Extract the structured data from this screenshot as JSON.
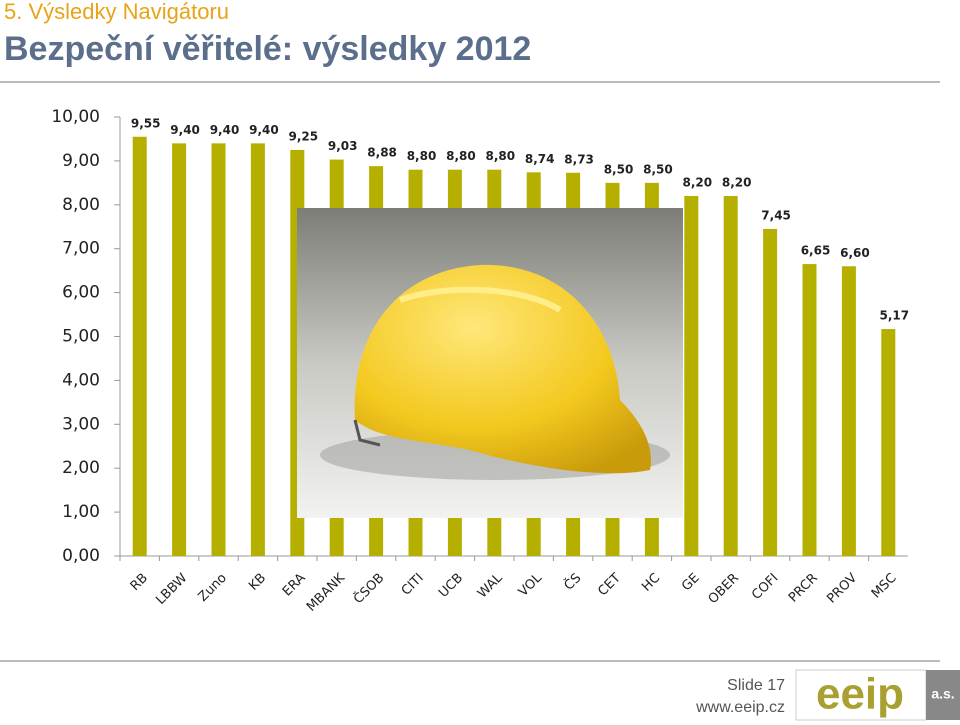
{
  "header": {
    "section": "5. Výsledky Navigátoru"
  },
  "chart_data": {
    "type": "bar",
    "title": "Bezpeční věřitelé: výsledky 2012",
    "categories": [
      "RB",
      "LBBW",
      "Zuno",
      "KB",
      "ERA",
      "MBANK",
      "ČSOB",
      "CITI",
      "UCB",
      "WAL",
      "VOL",
      "ČS",
      "CET",
      "HC",
      "GE",
      "OBER",
      "COFI",
      "PRCR",
      "PROV",
      "MSC"
    ],
    "values": [
      9.55,
      9.4,
      9.4,
      9.4,
      9.25,
      9.03,
      8.88,
      8.8,
      8.8,
      8.8,
      8.74,
      8.73,
      8.5,
      8.5,
      8.2,
      8.2,
      7.45,
      6.65,
      6.6,
      5.17
    ],
    "value_labels": [
      "9,55",
      "9,40",
      "9,40",
      "9,40",
      "9,25",
      "9,03",
      "8,88",
      "8,80",
      "8,80",
      "8,80",
      "8,74",
      "8,73",
      "8,50",
      "8,50",
      "8,20",
      "8,20",
      "7,45",
      "6,65",
      "6,60",
      "5,17"
    ],
    "color": "#b5b000",
    "ylim": [
      0,
      10
    ],
    "yticks": [
      {
        "value": 0,
        "label": "0,00"
      },
      {
        "value": 1,
        "label": "1,00"
      },
      {
        "value": 2,
        "label": "2,00"
      },
      {
        "value": 3,
        "label": "3,00"
      },
      {
        "value": 4,
        "label": "4,00"
      },
      {
        "value": 5,
        "label": "5,00"
      },
      {
        "value": 6,
        "label": "6,00"
      },
      {
        "value": 7,
        "label": "7,00"
      },
      {
        "value": 8,
        "label": "8,00"
      },
      {
        "value": 9,
        "label": "9,00"
      },
      {
        "value": 10,
        "label": "10,00"
      }
    ]
  },
  "footer": {
    "slide": "Slide 17",
    "url": "www.eeip.cz",
    "logo": "eeip",
    "logo_suffix": "a.s."
  }
}
